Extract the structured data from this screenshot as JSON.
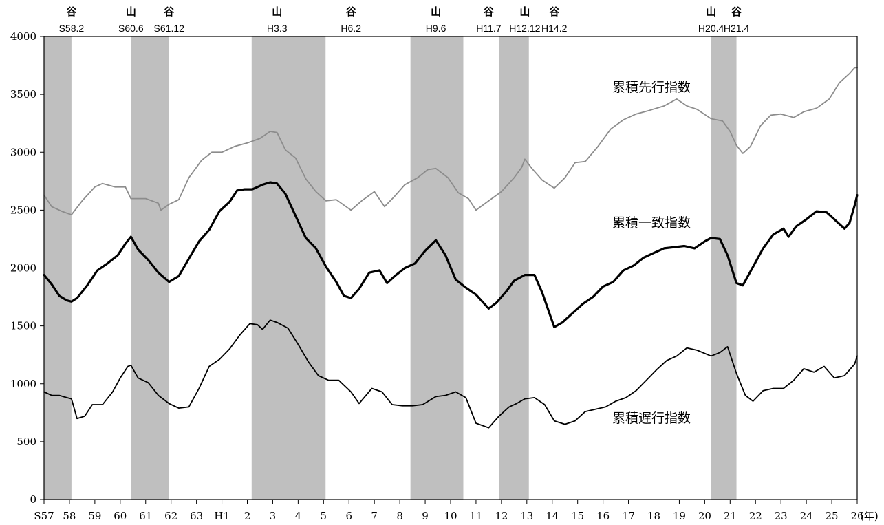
{
  "chart_data": {
    "type": "line",
    "ylim": [
      0,
      4000
    ],
    "yticks": [
      0,
      500,
      1000,
      1500,
      2000,
      2500,
      3000,
      3500,
      4000
    ],
    "x_unit": "(年)",
    "x_tick_labels": [
      "S57",
      "58",
      "59",
      "60",
      "61",
      "62",
      "63",
      "H1",
      "2",
      "3",
      "4",
      "5",
      "6",
      "7",
      "8",
      "9",
      "10",
      "11",
      "12",
      "13",
      "14",
      "15",
      "16",
      "17",
      "18",
      "19",
      "20",
      "21",
      "22",
      "23",
      "24",
      "25",
      "26"
    ],
    "grid": false,
    "shaded_periods": [
      {
        "start": 0.0,
        "end": 1.08
      },
      {
        "start": 3.42,
        "end": 4.92
      },
      {
        "start": 8.17,
        "end": 11.08
      },
      {
        "start": 14.42,
        "end": 16.5
      },
      {
        "start": 17.92,
        "end": 19.08
      },
      {
        "start": 26.25,
        "end": 27.25
      }
    ],
    "cycle_markers": [
      {
        "kanji": "谷",
        "date": "S58.2",
        "x": 1.08
      },
      {
        "kanji": "山",
        "date": "S60.6",
        "x": 3.42
      },
      {
        "kanji": "谷",
        "date": "S61.12",
        "x": 4.92
      },
      {
        "kanji": "山",
        "date": "H3.3",
        "x": 9.17
      },
      {
        "kanji": "谷",
        "date": "H6.2",
        "x": 12.08
      },
      {
        "kanji": "山",
        "date": "H9.6",
        "x": 15.42
      },
      {
        "kanji": "谷",
        "date": "H11.7",
        "x": 17.5
      },
      {
        "kanji": "山",
        "date": "H12.12",
        "x": 18.92
      },
      {
        "kanji": "谷",
        "date": "H14.2",
        "x": 20.08
      },
      {
        "kanji": "山",
        "date": "H20.4",
        "x": 26.25
      },
      {
        "kanji": "谷",
        "date": "H21.4",
        "x": 27.25
      }
    ],
    "series": [
      {
        "name": "累積先行指数",
        "color": "#8c8c8c",
        "width": 1.8,
        "points": [
          [
            0,
            2630
          ],
          [
            0.3,
            2530
          ],
          [
            0.7,
            2490
          ],
          [
            1.08,
            2460
          ],
          [
            1.5,
            2580
          ],
          [
            2,
            2700
          ],
          [
            2.3,
            2730
          ],
          [
            2.8,
            2700
          ],
          [
            3.2,
            2700
          ],
          [
            3.42,
            2600
          ],
          [
            4,
            2600
          ],
          [
            4.5,
            2560
          ],
          [
            4.6,
            2500
          ],
          [
            4.92,
            2550
          ],
          [
            5.3,
            2590
          ],
          [
            5.7,
            2780
          ],
          [
            6.2,
            2930
          ],
          [
            6.6,
            3000
          ],
          [
            7,
            3000
          ],
          [
            7.5,
            3050
          ],
          [
            8,
            3080
          ],
          [
            8.5,
            3120
          ],
          [
            8.9,
            3180
          ],
          [
            9.17,
            3170
          ],
          [
            9.5,
            3020
          ],
          [
            9.9,
            2950
          ],
          [
            10.3,
            2770
          ],
          [
            10.7,
            2660
          ],
          [
            11.1,
            2580
          ],
          [
            11.5,
            2590
          ],
          [
            12.08,
            2500
          ],
          [
            12.5,
            2580
          ],
          [
            13,
            2660
          ],
          [
            13.4,
            2530
          ],
          [
            13.8,
            2620
          ],
          [
            14.2,
            2720
          ],
          [
            14.7,
            2780
          ],
          [
            15.1,
            2850
          ],
          [
            15.42,
            2860
          ],
          [
            15.9,
            2780
          ],
          [
            16.3,
            2650
          ],
          [
            16.7,
            2600
          ],
          [
            17,
            2500
          ],
          [
            17.5,
            2580
          ],
          [
            18,
            2660
          ],
          [
            18.5,
            2780
          ],
          [
            18.8,
            2870
          ],
          [
            18.92,
            2940
          ],
          [
            19.2,
            2860
          ],
          [
            19.6,
            2760
          ],
          [
            20.08,
            2690
          ],
          [
            20.5,
            2780
          ],
          [
            20.9,
            2910
          ],
          [
            21.3,
            2920
          ],
          [
            21.8,
            3050
          ],
          [
            22.3,
            3200
          ],
          [
            22.8,
            3280
          ],
          [
            23.3,
            3330
          ],
          [
            23.8,
            3360
          ],
          [
            24.4,
            3400
          ],
          [
            24.9,
            3460
          ],
          [
            25.3,
            3400
          ],
          [
            25.7,
            3370
          ],
          [
            26.25,
            3290
          ],
          [
            26.7,
            3270
          ],
          [
            27.0,
            3180
          ],
          [
            27.25,
            3060
          ],
          [
            27.5,
            2990
          ],
          [
            27.8,
            3050
          ],
          [
            28.2,
            3230
          ],
          [
            28.6,
            3320
          ],
          [
            29,
            3330
          ],
          [
            29.5,
            3300
          ],
          [
            29.9,
            3350
          ],
          [
            30.4,
            3380
          ],
          [
            30.9,
            3460
          ],
          [
            31.3,
            3600
          ],
          [
            31.7,
            3680
          ],
          [
            31.9,
            3730
          ],
          [
            32,
            3730
          ]
        ]
      },
      {
        "name": "累積一致指数",
        "color": "#000000",
        "width": 3.2,
        "points": [
          [
            0,
            1940
          ],
          [
            0.3,
            1860
          ],
          [
            0.6,
            1760
          ],
          [
            0.9,
            1720
          ],
          [
            1.08,
            1710
          ],
          [
            1.3,
            1740
          ],
          [
            1.7,
            1850
          ],
          [
            2.1,
            1980
          ],
          [
            2.5,
            2040
          ],
          [
            2.9,
            2110
          ],
          [
            3.2,
            2210
          ],
          [
            3.42,
            2270
          ],
          [
            3.7,
            2160
          ],
          [
            4.1,
            2070
          ],
          [
            4.5,
            1960
          ],
          [
            4.92,
            1880
          ],
          [
            5.3,
            1930
          ],
          [
            5.7,
            2080
          ],
          [
            6.1,
            2230
          ],
          [
            6.5,
            2330
          ],
          [
            6.9,
            2490
          ],
          [
            7.3,
            2570
          ],
          [
            7.6,
            2670
          ],
          [
            7.9,
            2680
          ],
          [
            8.2,
            2680
          ],
          [
            8.6,
            2720
          ],
          [
            8.9,
            2740
          ],
          [
            9.17,
            2730
          ],
          [
            9.5,
            2640
          ],
          [
            9.9,
            2450
          ],
          [
            10.3,
            2260
          ],
          [
            10.7,
            2170
          ],
          [
            11.1,
            2010
          ],
          [
            11.5,
            1880
          ],
          [
            11.8,
            1760
          ],
          [
            12.08,
            1740
          ],
          [
            12.4,
            1820
          ],
          [
            12.8,
            1960
          ],
          [
            13.2,
            1980
          ],
          [
            13.5,
            1870
          ],
          [
            13.8,
            1930
          ],
          [
            14.2,
            2000
          ],
          [
            14.6,
            2040
          ],
          [
            15.0,
            2150
          ],
          [
            15.42,
            2240
          ],
          [
            15.8,
            2110
          ],
          [
            16.2,
            1900
          ],
          [
            16.6,
            1830
          ],
          [
            17.0,
            1770
          ],
          [
            17.5,
            1650
          ],
          [
            17.8,
            1700
          ],
          [
            18.2,
            1800
          ],
          [
            18.5,
            1890
          ],
          [
            18.92,
            1940
          ],
          [
            19.3,
            1940
          ],
          [
            19.6,
            1790
          ],
          [
            20.08,
            1490
          ],
          [
            20.4,
            1530
          ],
          [
            20.8,
            1610
          ],
          [
            21.2,
            1690
          ],
          [
            21.6,
            1750
          ],
          [
            22.0,
            1840
          ],
          [
            22.4,
            1880
          ],
          [
            22.8,
            1980
          ],
          [
            23.2,
            2020
          ],
          [
            23.6,
            2090
          ],
          [
            24.0,
            2130
          ],
          [
            24.4,
            2170
          ],
          [
            24.8,
            2180
          ],
          [
            25.2,
            2190
          ],
          [
            25.6,
            2170
          ],
          [
            26.0,
            2230
          ],
          [
            26.25,
            2260
          ],
          [
            26.6,
            2250
          ],
          [
            26.9,
            2110
          ],
          [
            27.25,
            1870
          ],
          [
            27.5,
            1850
          ],
          [
            27.9,
            2010
          ],
          [
            28.3,
            2170
          ],
          [
            28.7,
            2290
          ],
          [
            29.1,
            2340
          ],
          [
            29.3,
            2270
          ],
          [
            29.6,
            2360
          ],
          [
            30.0,
            2420
          ],
          [
            30.4,
            2490
          ],
          [
            30.8,
            2480
          ],
          [
            31.2,
            2400
          ],
          [
            31.5,
            2340
          ],
          [
            31.7,
            2390
          ],
          [
            31.9,
            2540
          ],
          [
            32,
            2630
          ]
        ]
      },
      {
        "name": "累積遅行指数",
        "color": "#000000",
        "width": 1.8,
        "points": [
          [
            0,
            930
          ],
          [
            0.3,
            900
          ],
          [
            0.6,
            900
          ],
          [
            0.9,
            880
          ],
          [
            1.08,
            870
          ],
          [
            1.3,
            700
          ],
          [
            1.6,
            720
          ],
          [
            1.9,
            820
          ],
          [
            2.3,
            820
          ],
          [
            2.7,
            930
          ],
          [
            3.0,
            1050
          ],
          [
            3.3,
            1150
          ],
          [
            3.42,
            1160
          ],
          [
            3.7,
            1050
          ],
          [
            4.1,
            1010
          ],
          [
            4.5,
            900
          ],
          [
            4.92,
            830
          ],
          [
            5.3,
            790
          ],
          [
            5.7,
            800
          ],
          [
            6.1,
            960
          ],
          [
            6.5,
            1150
          ],
          [
            6.9,
            1210
          ],
          [
            7.3,
            1300
          ],
          [
            7.7,
            1420
          ],
          [
            8.1,
            1520
          ],
          [
            8.4,
            1510
          ],
          [
            8.6,
            1470
          ],
          [
            8.9,
            1550
          ],
          [
            9.17,
            1530
          ],
          [
            9.6,
            1480
          ],
          [
            10.0,
            1340
          ],
          [
            10.4,
            1190
          ],
          [
            10.8,
            1070
          ],
          [
            11.2,
            1030
          ],
          [
            11.6,
            1030
          ],
          [
            12.08,
            930
          ],
          [
            12.4,
            830
          ],
          [
            12.9,
            960
          ],
          [
            13.3,
            930
          ],
          [
            13.7,
            820
          ],
          [
            14.1,
            810
          ],
          [
            14.5,
            810
          ],
          [
            14.9,
            820
          ],
          [
            15.42,
            890
          ],
          [
            15.8,
            900
          ],
          [
            16.2,
            930
          ],
          [
            16.6,
            880
          ],
          [
            17.0,
            660
          ],
          [
            17.5,
            620
          ],
          [
            17.9,
            720
          ],
          [
            18.3,
            800
          ],
          [
            18.6,
            830
          ],
          [
            18.92,
            870
          ],
          [
            19.3,
            880
          ],
          [
            19.7,
            820
          ],
          [
            20.08,
            680
          ],
          [
            20.5,
            650
          ],
          [
            20.9,
            680
          ],
          [
            21.3,
            760
          ],
          [
            21.7,
            780
          ],
          [
            22.1,
            800
          ],
          [
            22.5,
            850
          ],
          [
            22.9,
            880
          ],
          [
            23.3,
            940
          ],
          [
            23.7,
            1030
          ],
          [
            24.1,
            1120
          ],
          [
            24.5,
            1200
          ],
          [
            24.9,
            1240
          ],
          [
            25.3,
            1310
          ],
          [
            25.7,
            1290
          ],
          [
            26.25,
            1240
          ],
          [
            26.6,
            1270
          ],
          [
            26.9,
            1320
          ],
          [
            27.25,
            1090
          ],
          [
            27.6,
            900
          ],
          [
            27.9,
            850
          ],
          [
            28.3,
            940
          ],
          [
            28.7,
            960
          ],
          [
            29.1,
            960
          ],
          [
            29.5,
            1030
          ],
          [
            29.9,
            1130
          ],
          [
            30.3,
            1100
          ],
          [
            30.7,
            1150
          ],
          [
            31.1,
            1050
          ],
          [
            31.5,
            1070
          ],
          [
            31.9,
            1170
          ],
          [
            32,
            1240
          ]
        ]
      }
    ],
    "series_labels_position": [
      "right of centre above each line"
    ]
  }
}
